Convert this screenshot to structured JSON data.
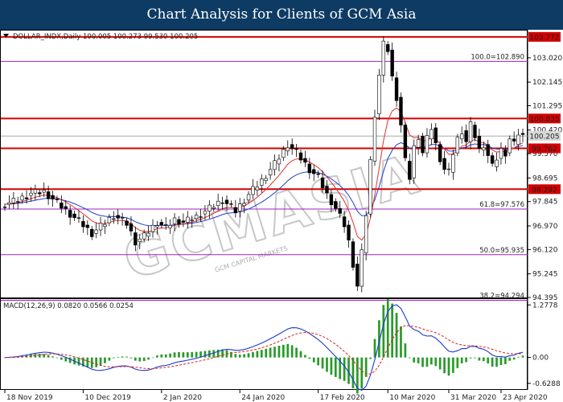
{
  "banner": {
    "title": "Chart Analysis for Clients of GCM Asia"
  },
  "chart_data": {
    "type": "candlestick",
    "symbol_line": "DOLLAR_INDX,Daily  100.005 100.273 99.530 100.205",
    "watermark": "GCMASIA",
    "watermark_small": "GCM CAPITAL MARKETS",
    "ylim": [
      94.395,
      104.0
    ],
    "y_ticks": [
      103.02,
      102.145,
      101.295,
      100.42,
      99.57,
      98.695,
      97.845,
      96.97,
      96.12,
      95.245,
      94.395
    ],
    "x_ticks": [
      "18 Nov 2019",
      "10 Dec 2019",
      "2 Jan 2020",
      "24 Jan 2020",
      "17 Feb 2020",
      "10 Mar 2020",
      "31 Mar 2020",
      "23 Apr 2020"
    ],
    "current_price": {
      "value": 100.205,
      "label": "100.205"
    },
    "horizontal_levels": [
      {
        "value": 103.772,
        "label": "103.772",
        "kind": "resistance",
        "color": "#d40000"
      },
      {
        "value": 100.835,
        "label": "100.835",
        "kind": "resistance",
        "color": "#d40000"
      },
      {
        "value": 99.762,
        "label": "99.762",
        "kind": "support",
        "color": "#d40000"
      },
      {
        "value": 98.292,
        "label": "98.292",
        "kind": "support",
        "color": "#d40000"
      }
    ],
    "fibonacci_levels": [
      {
        "value": 102.89,
        "label": "100.0=102.890",
        "color": "#a020c0"
      },
      {
        "value": 97.576,
        "label": "61.8=97.576",
        "color": "#a020c0"
      },
      {
        "value": 95.935,
        "label": "50.0=95.935",
        "color": "#a020c0"
      },
      {
        "value": 94.294,
        "label": "38.2=94.294",
        "color": "#a020c0"
      }
    ],
    "price_path": [
      [
        0,
        97.75
      ],
      [
        3,
        97.9
      ],
      [
        6,
        98.15
      ],
      [
        9,
        98.2
      ],
      [
        12,
        97.8
      ],
      [
        15,
        97.4
      ],
      [
        18,
        97.0
      ],
      [
        20,
        96.7
      ],
      [
        22,
        96.95
      ],
      [
        25,
        97.35
      ],
      [
        28,
        97.05
      ],
      [
        30,
        96.4
      ],
      [
        32,
        96.6
      ],
      [
        35,
        97.1
      ],
      [
        37,
        96.9
      ],
      [
        39,
        97.2
      ],
      [
        41,
        97.1
      ],
      [
        44,
        97.3
      ],
      [
        47,
        97.6
      ],
      [
        50,
        97.9
      ],
      [
        53,
        97.5
      ],
      [
        56,
        98.1
      ],
      [
        59,
        98.6
      ],
      [
        62,
        99.2
      ],
      [
        65,
        99.9
      ],
      [
        67,
        99.6
      ],
      [
        70,
        99.0
      ],
      [
        72,
        98.7
      ],
      [
        74,
        98.1
      ],
      [
        76,
        97.6
      ],
      [
        78,
        97.0
      ],
      [
        79,
        96.4
      ],
      [
        80,
        95.6
      ],
      [
        81,
        94.8
      ],
      [
        82,
        96.0
      ],
      [
        83,
        97.4
      ],
      [
        84,
        99.3
      ],
      [
        85,
        101.0
      ],
      [
        86,
        102.4
      ],
      [
        87,
        103.5
      ],
      [
        88,
        103.3
      ],
      [
        89,
        102.3
      ],
      [
        90,
        101.6
      ],
      [
        91,
        100.6
      ],
      [
        92,
        99.3
      ],
      [
        93,
        98.7
      ],
      [
        94,
        99.8
      ],
      [
        95,
        100.2
      ],
      [
        96,
        99.6
      ],
      [
        97,
        100.1
      ],
      [
        98,
        100.5
      ],
      [
        99,
        99.9
      ],
      [
        100,
        99.4
      ],
      [
        101,
        99.0
      ],
      [
        102,
        98.9
      ],
      [
        103,
        99.6
      ],
      [
        104,
        100.1
      ],
      [
        105,
        100.4
      ],
      [
        106,
        100.0
      ],
      [
        107,
        100.6
      ],
      [
        108,
        100.2
      ],
      [
        109,
        99.7
      ],
      [
        110,
        99.9
      ],
      [
        111,
        99.5
      ],
      [
        112,
        99.1
      ],
      [
        113,
        99.4
      ],
      [
        114,
        99.7
      ],
      [
        115,
        99.6
      ],
      [
        116,
        100.1
      ],
      [
        117,
        99.9
      ],
      [
        118,
        100.3
      ],
      [
        119,
        100.2
      ]
    ],
    "ma_fast": {
      "color": "#e03030"
    },
    "ma_slow": {
      "color": "#2040d0"
    },
    "macd": {
      "label": "MACD(12,26,9) 0.0820 0.0566 0.0254",
      "y_ticks": [
        1.2778,
        0.0,
        -0.6288
      ],
      "ylim": [
        -0.75,
        1.4
      ],
      "hist_color": "#2a9a2a",
      "macd_color": "#1a3ad0",
      "signal_color": "#e02020"
    }
  }
}
